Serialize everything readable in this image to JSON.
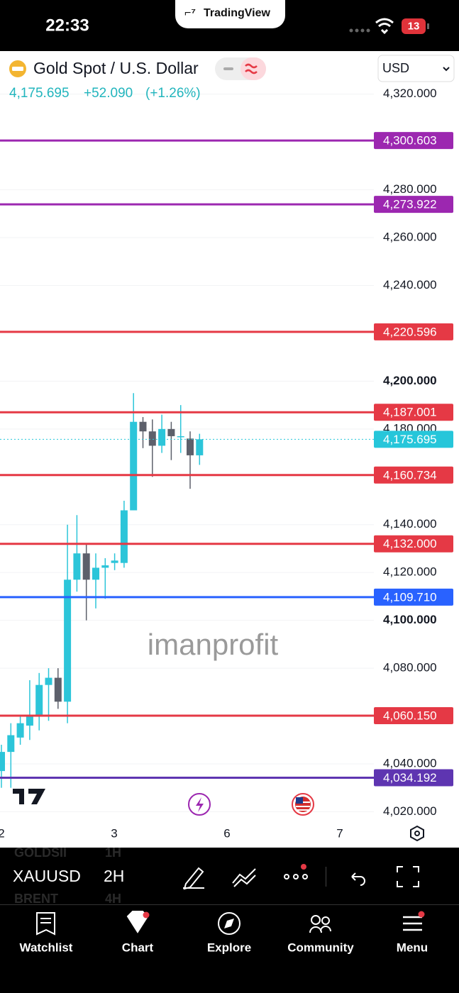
{
  "status_bar": {
    "time": "22:33",
    "app": "TradingView",
    "badge": "13"
  },
  "header": {
    "symbol": "Gold Spot / U.S. Dollar",
    "price": "4,175.695",
    "change": "+52.090",
    "change_pct": "(+1.26%)",
    "currency": "USD"
  },
  "chart_data": {
    "type": "candlestick",
    "watermark": "imanprofit",
    "x_labels": [
      "2",
      "3",
      "6",
      "7"
    ],
    "open": [
      4037,
      4045,
      4051,
      4056,
      4060,
      4073,
      4076,
      4066,
      4117,
      4128,
      4117,
      4122,
      4124,
      4124,
      4146,
      4183,
      4179,
      4173,
      4180,
      4177,
      4176,
      4169
    ],
    "high": [
      4048,
      4057,
      4060,
      4075,
      4078,
      4080,
      4080,
      4140,
      4144,
      4132,
      4128,
      4126,
      4128,
      4150,
      4195,
      4185,
      4184,
      4186,
      4183,
      4190,
      4179,
      4178
    ],
    "low": [
      4030,
      4030,
      4048,
      4050,
      4054,
      4058,
      4063,
      4057,
      4112,
      4100,
      4105,
      4109,
      4121,
      4122,
      4146,
      4172,
      4160,
      4170,
      4167,
      4170,
      4155,
      4165
    ],
    "close": [
      4045,
      4052,
      4057,
      4060,
      4073,
      4076,
      4066,
      4117,
      4128,
      4117,
      4122,
      4123,
      4125,
      4146,
      4183,
      4179,
      4173,
      4180,
      4177,
      4177,
      4169,
      4175.695
    ],
    "up_color": "#2cc5d9",
    "down_color": "#5d606b",
    "ylim": [
      4005,
      4338
    ],
    "yticks": [
      {
        "value": 4320,
        "label": "4,320.000"
      },
      {
        "value": 4280,
        "label": "4,280.000"
      },
      {
        "value": 4260,
        "label": "4,260.000"
      },
      {
        "value": 4240,
        "label": "4,240.000"
      },
      {
        "value": 4200,
        "label": "4,200.000"
      },
      {
        "value": 4180,
        "label": "4,180.000"
      },
      {
        "value": 4140,
        "label": "4,140.000"
      },
      {
        "value": 4120,
        "label": "4,120.000"
      },
      {
        "value": 4100,
        "label": "4,100.000"
      },
      {
        "value": 4080,
        "label": "4,080.000"
      },
      {
        "value": 4040,
        "label": "4,040.000"
      },
      {
        "value": 4020,
        "label": "4,020.000"
      }
    ],
    "grid": true,
    "levels": [
      {
        "value": 4300.603,
        "label": "4,300.603",
        "color": "#9c27b0"
      },
      {
        "value": 4273.922,
        "label": "4,273.922",
        "color": "#9c27b0"
      },
      {
        "value": 4220.596,
        "label": "4,220.596",
        "color": "#e53945"
      },
      {
        "value": 4187.001,
        "label": "4,187.001",
        "color": "#e53945"
      },
      {
        "value": 4160.734,
        "label": "4,160.734",
        "color": "#e53945"
      },
      {
        "value": 4132.0,
        "label": "4,132.000",
        "color": "#e53945"
      },
      {
        "value": 4109.71,
        "label": "4,109.710",
        "color": "#2962ff"
      },
      {
        "value": 4060.15,
        "label": "4,060.150",
        "color": "#e53945"
      },
      {
        "value": 4034.192,
        "label": "4,034.192",
        "color": "#5e35b1"
      }
    ],
    "last_price": {
      "value": 4175.695,
      "label": "4,175.695",
      "color": "#26c6da"
    }
  },
  "toolbar": {
    "symbol": "XAUUSD",
    "interval": "2H",
    "ghost": [
      "GOLDSII",
      "1H",
      "BRENT",
      "4H"
    ]
  },
  "nav": [
    "Watchlist",
    "Chart",
    "Explore",
    "Community",
    "Menu"
  ]
}
